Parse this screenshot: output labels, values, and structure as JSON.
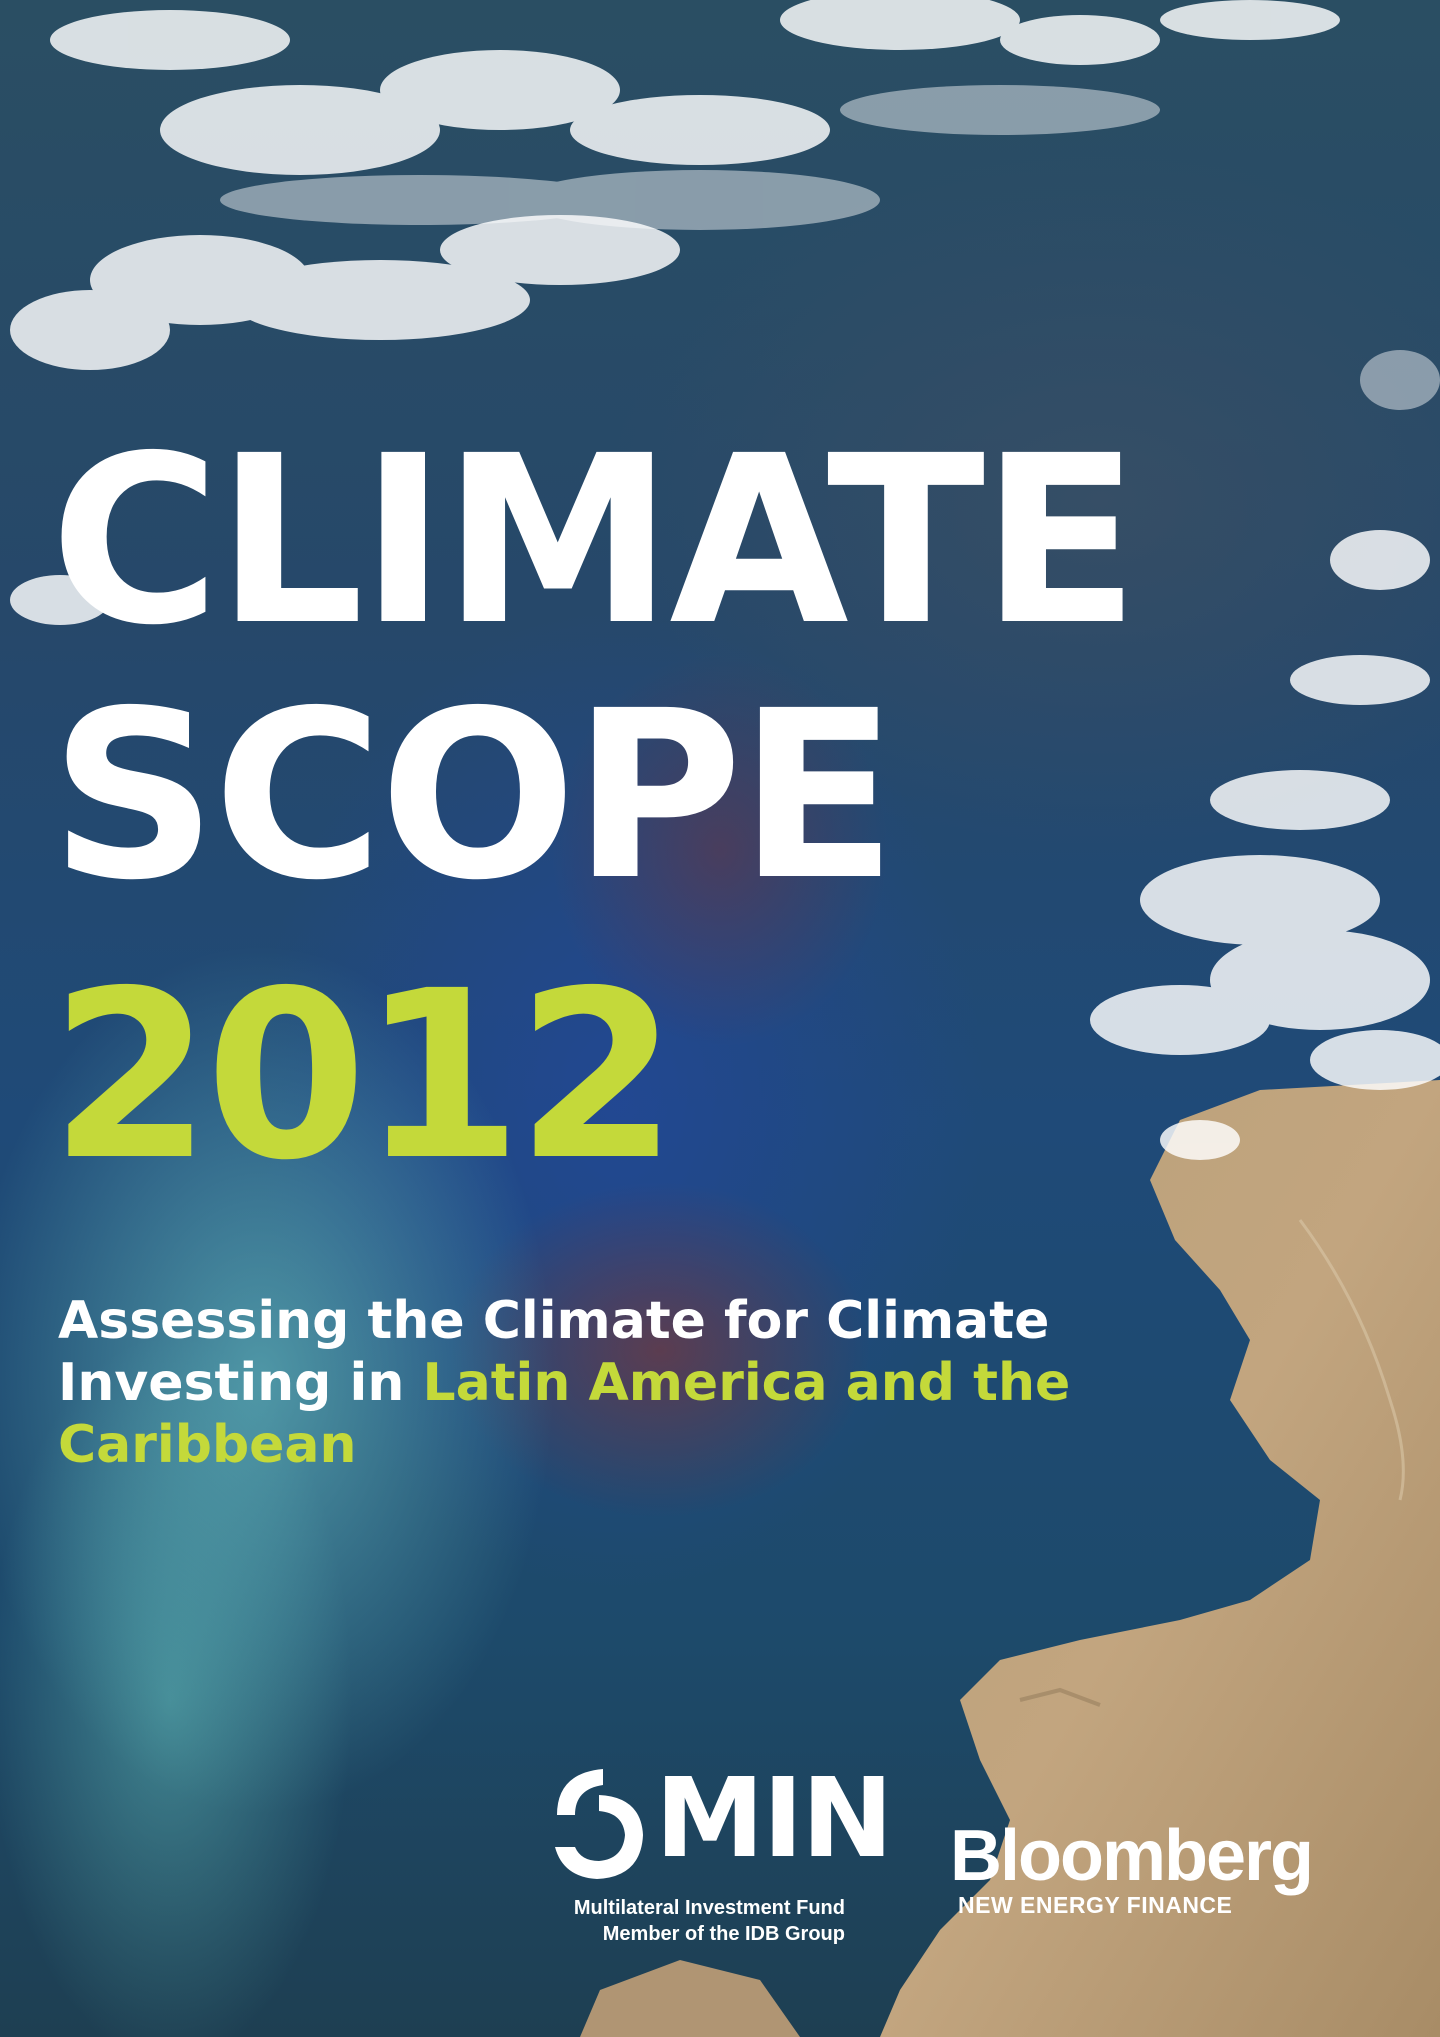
{
  "cover": {
    "title_line1": "CLIMATE",
    "title_line2": "SCOPE",
    "year": "2012",
    "subtitle_part1": "Assessing the Climate for Climate Investing in ",
    "subtitle_highlight": "Latin America and the Caribbean",
    "accent_color": "#c4d93a",
    "title_color": "#ffffff"
  },
  "logos": {
    "omin": {
      "name": "MIN",
      "subtitle_line1": "Multilateral Investment Fund",
      "subtitle_line2": "Member of the IDB Group",
      "icon": "omin-logo-icon"
    },
    "bloomberg": {
      "name": "Bloomberg",
      "subtitle": "NEW ENERGY FINANCE"
    }
  }
}
